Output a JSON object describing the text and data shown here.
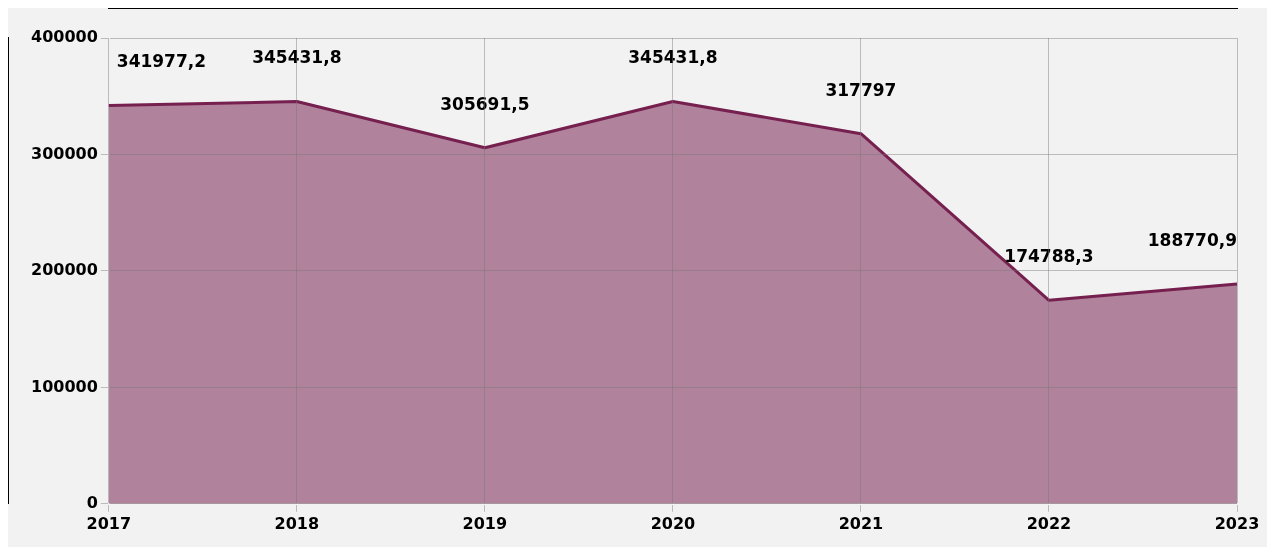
{
  "chart_data": {
    "type": "area",
    "categories": [
      "2017",
      "2018",
      "2019",
      "2020",
      "2021",
      "2022",
      "2023"
    ],
    "series": [
      {
        "color": "#76204f",
        "values": [
          341977.2,
          345431.8,
          305691.5,
          345431.8,
          317797,
          174788.3,
          188770.9
        ],
        "value_labels": [
          "341977,2",
          "345431,8",
          "305691,5",
          "345431,8",
          "317797",
          "174788,3",
          "188770,9"
        ]
      }
    ],
    "ylim": [
      0,
      400000
    ],
    "yticks": [
      0,
      100000,
      200000,
      300000,
      400000
    ],
    "grid": true,
    "legend": false
  }
}
